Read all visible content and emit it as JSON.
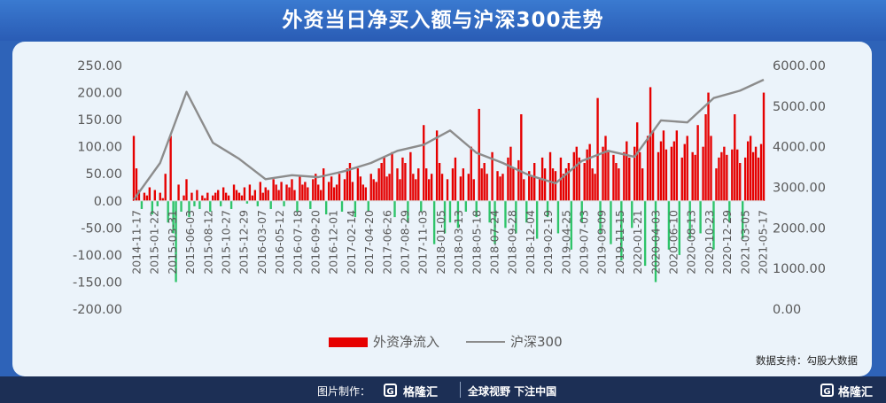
{
  "title": "外资当日净买入额与沪深300走势",
  "source": "数据支持：勾股大数据",
  "footer": {
    "credit_label": "图片制作：",
    "brand": "格隆汇",
    "slogan": "全球视野 下注中国",
    "corner_brand": "格隆汇"
  },
  "colors": {
    "inflow_positive": "#e60000",
    "inflow_negative": "#2fc46a",
    "hs300_line": "#8c8c8c",
    "panel_bg": "#ebf3fa",
    "frame_bg": "#2e63b8",
    "footer_bg": "#1c2f55"
  },
  "chart_data": {
    "type": "bar+line",
    "title": "外资当日净买入额与沪深300走势",
    "legend": {
      "position": "bottom-center"
    },
    "grid": false,
    "y_left": {
      "min": -200,
      "max": 250,
      "step": 50,
      "format": "2dp"
    },
    "y_right": {
      "min": 0,
      "max": 6000,
      "step": 1000,
      "format": "2dp"
    },
    "x_tick_labels": [
      "2014-11-17",
      "2015-01-22",
      "2015-03-31",
      "2015-06-03",
      "2015-08-12",
      "2015-10-27",
      "2015-12-29",
      "2016-03-07",
      "2016-05-12",
      "2016-07-18",
      "2016-09-20",
      "2016-12-01",
      "2017-02-14",
      "2017-04-20",
      "2017-06-26",
      "2017-08-29",
      "2017-11-03",
      "2018-01-05",
      "2018-03-13",
      "2018-05-18",
      "2018-07-24",
      "2018-09-28",
      "2018-12-04",
      "2019-02-19",
      "2019-04-25",
      "2019-07-03",
      "2019-09-09",
      "2019-11-15",
      "2020-01-21",
      "2020-04-03",
      "2020-06-10",
      "2020-08-13",
      "2020-10-23",
      "2020-12-29",
      "2021-03-05",
      "2021-05-17"
    ],
    "series": [
      {
        "name": "外资净流入",
        "type": "bar",
        "axis": "left",
        "x": [
          0,
          1,
          2,
          3,
          4,
          5,
          6,
          7,
          8,
          9,
          10,
          11,
          12,
          13,
          14,
          15,
          16,
          17,
          18,
          19,
          20,
          21,
          22,
          23,
          24,
          25,
          26,
          27,
          28,
          29,
          30,
          31,
          32,
          33,
          34,
          35,
          36,
          37,
          38,
          39,
          40,
          41,
          42,
          43,
          44,
          45,
          46,
          47,
          48,
          49,
          50,
          51,
          52,
          53,
          54,
          55,
          56,
          57,
          58,
          59,
          60,
          61,
          62,
          63,
          64,
          65,
          66,
          67,
          68,
          69,
          70,
          71,
          72,
          73,
          74,
          75,
          76,
          77,
          78,
          79,
          80,
          81,
          82,
          83,
          84,
          85,
          86,
          87,
          88,
          89,
          90,
          91,
          92,
          93,
          94,
          95,
          96,
          97,
          98,
          99,
          100,
          101,
          102,
          103,
          104,
          105,
          106,
          107,
          108,
          109,
          110,
          111,
          112,
          113,
          114,
          115,
          116,
          117,
          118,
          119,
          120,
          121,
          122,
          123,
          124,
          125,
          126,
          127,
          128,
          129,
          130,
          131,
          132,
          133,
          134,
          135,
          136,
          137,
          138,
          139,
          140,
          141,
          142,
          143,
          144,
          145,
          146,
          147,
          148,
          149,
          150,
          151,
          152,
          153,
          154,
          155,
          156,
          157,
          158,
          159,
          160,
          161,
          162,
          163,
          164,
          165,
          166,
          167,
          168,
          169,
          170,
          171,
          172,
          173,
          174,
          175,
          176,
          177,
          178,
          179,
          180,
          181,
          182,
          183,
          184,
          185,
          186,
          187,
          188,
          189,
          190,
          191,
          192,
          193,
          194,
          195,
          196,
          197,
          198,
          199,
          200,
          201,
          202,
          203,
          204,
          205,
          206,
          207,
          208,
          209,
          210,
          211,
          212,
          213,
          214,
          215,
          216,
          217,
          218,
          219,
          220,
          221,
          222,
          223,
          224,
          225,
          226,
          227,
          228,
          229,
          230,
          231,
          232,
          233,
          234,
          235,
          236,
          237,
          238,
          239
        ],
        "values": [
          120,
          60,
          20,
          -15,
          15,
          10,
          25,
          -25,
          20,
          -10,
          15,
          5,
          50,
          -40,
          120,
          -60,
          -150,
          30,
          -20,
          10,
          40,
          -30,
          15,
          -10,
          20,
          -15,
          10,
          5,
          15,
          -20,
          10,
          15,
          20,
          -10,
          25,
          15,
          10,
          -15,
          30,
          20,
          15,
          10,
          25,
          -5,
          30,
          10,
          20,
          -10,
          35,
          15,
          25,
          20,
          -15,
          40,
          30,
          20,
          35,
          -10,
          30,
          25,
          40,
          20,
          -20,
          45,
          30,
          35,
          25,
          -15,
          40,
          50,
          30,
          20,
          60,
          -25,
          35,
          45,
          25,
          30,
          50,
          -20,
          40,
          60,
          70,
          35,
          -30,
          60,
          45,
          30,
          25,
          -20,
          50,
          40,
          35,
          60,
          70,
          80,
          45,
          50,
          90,
          -30,
          60,
          40,
          80,
          70,
          -40,
          90,
          50,
          40,
          60,
          -20,
          140,
          60,
          40,
          50,
          -80,
          130,
          70,
          50,
          -60,
          40,
          -40,
          60,
          80,
          -50,
          45,
          60,
          -20,
          50,
          100,
          40,
          -30,
          170,
          60,
          70,
          50,
          -40,
          90,
          -80,
          55,
          45,
          50,
          -50,
          80,
          100,
          60,
          -60,
          75,
          160,
          40,
          -40,
          55,
          45,
          70,
          -70,
          40,
          80,
          60,
          -30,
          90,
          60,
          55,
          -60,
          80,
          50,
          60,
          70,
          -90,
          90,
          100,
          80,
          -40,
          70,
          95,
          105,
          60,
          50,
          190,
          -60,
          100,
          120,
          90,
          -80,
          85,
          70,
          60,
          -110,
          90,
          110,
          80,
          -50,
          100,
          145,
          90,
          60,
          -120,
          120,
          210,
          130,
          -150,
          90,
          110,
          130,
          95,
          -90,
          100,
          110,
          130,
          -100,
          80,
          105,
          120,
          -70,
          90,
          85,
          140,
          -60,
          100,
          160,
          200,
          120,
          -90,
          60,
          80,
          90,
          100,
          85,
          -40,
          95,
          160,
          95,
          70,
          -70,
          80,
          110,
          120,
          90,
          100,
          80,
          105,
          200
        ],
        "color": "#e60000",
        "negative_color": "#2fc46a",
        "note": "approximate resampled values, billion yuan"
      },
      {
        "name": "沪深300",
        "type": "line",
        "axis": "right",
        "x": [
          0,
          10,
          20,
          30,
          40,
          50,
          60,
          70,
          80,
          90,
          100,
          110,
          120,
          130,
          140,
          150,
          160,
          170,
          180,
          190,
          200,
          210,
          220,
          230,
          239
        ],
        "values": [
          2700,
          3600,
          5350,
          4100,
          3700,
          3200,
          3300,
          3250,
          3400,
          3600,
          3900,
          4050,
          4400,
          3850,
          3600,
          3300,
          3100,
          3650,
          3900,
          3750,
          4650,
          4600,
          5200,
          5380,
          5650
        ],
        "color": "#8c8c8c"
      }
    ]
  }
}
